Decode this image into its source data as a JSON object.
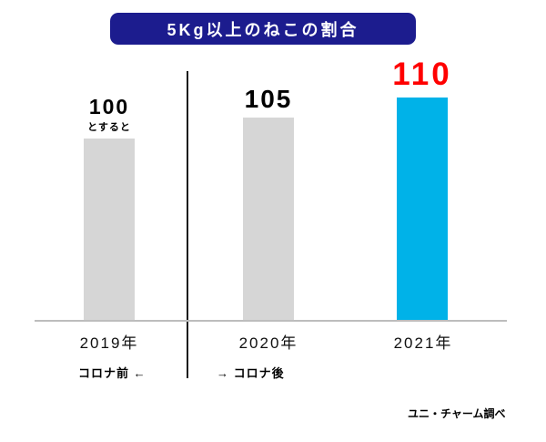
{
  "chart_data": {
    "type": "bar",
    "title": "5Kg以上のねこの割合",
    "categories": [
      "2019年",
      "2020年",
      "2021年"
    ],
    "values": [
      100,
      105,
      110
    ],
    "value_labels": [
      "100",
      "105",
      "110"
    ],
    "note_under_first": "とすると",
    "ylim": [
      55,
      115
    ],
    "grid": false,
    "legend_position": "none",
    "bar_colors": [
      "#d6d6d6",
      "#d6d6d6",
      "#00b2e8"
    ],
    "value_colors": [
      "#000000",
      "#000000",
      "#ff0000"
    ]
  },
  "annotations": {
    "before_covid": "コロナ前 ←",
    "after_covid": "→ コロナ後",
    "source": "ユニ・チャーム調べ"
  },
  "colors": {
    "title_bg": "#1c1c8e",
    "title_text": "#ffffff",
    "axis": "#bdbdbd",
    "divider": "#1a1a1a"
  }
}
